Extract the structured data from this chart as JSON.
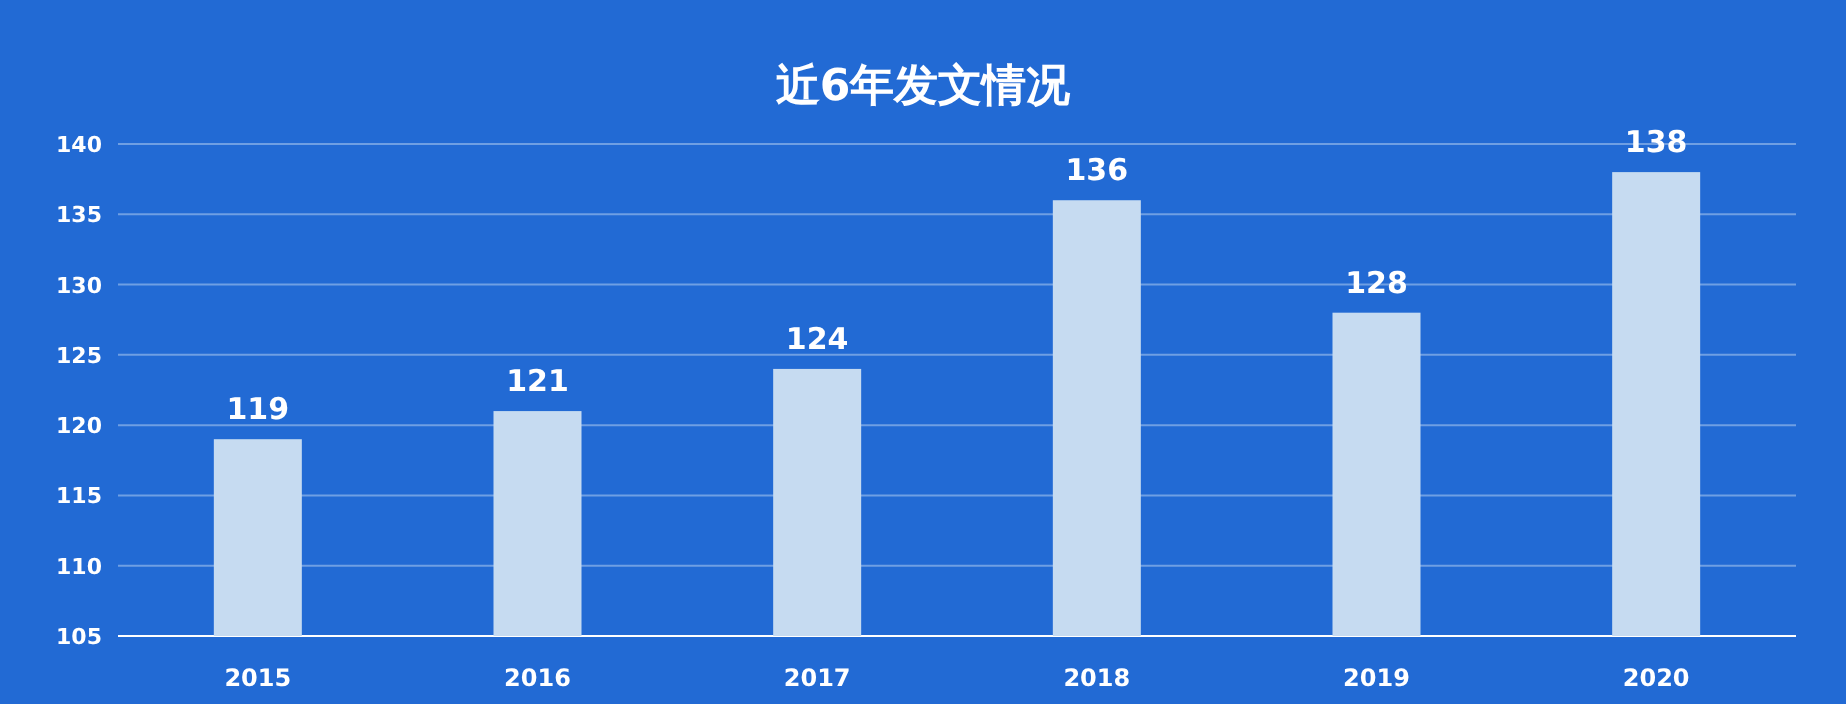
{
  "chart_data": {
    "type": "bar",
    "title": "近6年发文情况",
    "categories": [
      "2015",
      "2016",
      "2017",
      "2018",
      "2019",
      "2020"
    ],
    "values": [
      119,
      121,
      124,
      136,
      128,
      138
    ],
    "color": "#c6dbf1",
    "ylim": [
      105,
      140
    ],
    "yticks": [
      105,
      110,
      115,
      120,
      125,
      130,
      135,
      140
    ],
    "grid": "y",
    "data_labels": true
  }
}
